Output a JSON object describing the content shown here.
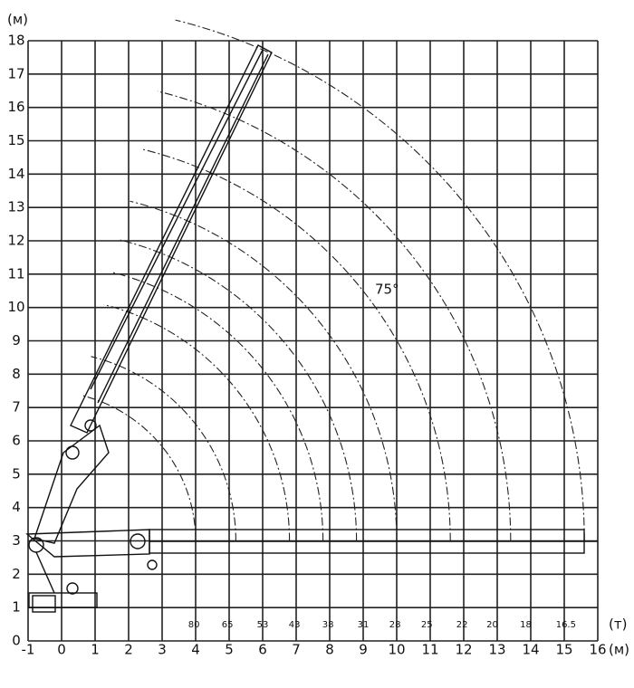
{
  "units": {
    "height": "(м)",
    "load": "(т)",
    "reach": "(м)"
  },
  "x_axis_labels": [
    "-1",
    "0",
    "1",
    "2",
    "3",
    "4",
    "5",
    "6",
    "7",
    "8",
    "9",
    "10",
    "11",
    "12",
    "13",
    "14",
    "15",
    "16"
  ],
  "y_axis_labels": [
    "0",
    "1",
    "2",
    "3",
    "4",
    "5",
    "6",
    "7",
    "8",
    "9",
    "10",
    "11",
    "12",
    "13",
    "14",
    "15",
    "16",
    "17",
    "18"
  ],
  "loads": [
    "80",
    "65",
    "53",
    "43",
    "38",
    "31",
    "28",
    "25",
    "22",
    "20",
    "18",
    "16.5"
  ],
  "angle_label": "75°"
}
